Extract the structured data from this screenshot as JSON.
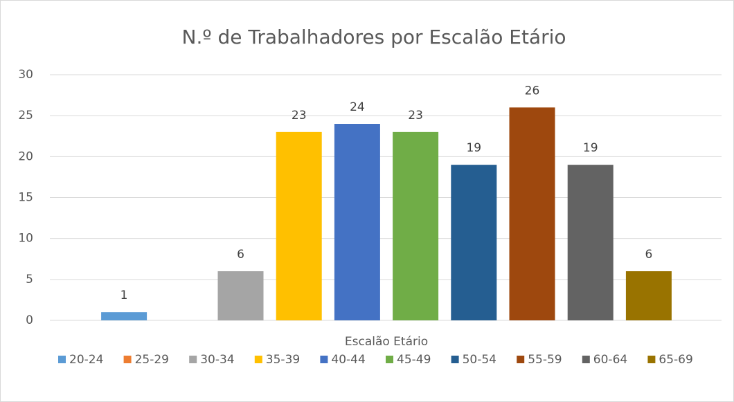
{
  "chart_data": {
    "type": "bar",
    "title": "N.º de Trabalhadores por Escalão Etário",
    "x_label": "Escalão Etário",
    "categories": [
      "20-24",
      "25-29",
      "30-34",
      "35-39",
      "40-44",
      "45-49",
      "50-54",
      "55-59",
      "60-64",
      "65-69"
    ],
    "values": [
      1,
      null,
      6,
      23,
      24,
      23,
      19,
      26,
      19,
      6
    ],
    "colors": [
      "#5b9bd5",
      "#ed7d31",
      "#a5a5a5",
      "#ffc000",
      "#4472c4",
      "#70ad47",
      "#255e91",
      "#9e480e",
      "#636363",
      "#997300"
    ],
    "ylim": [
      0,
      30
    ],
    "yticks": [
      0,
      5,
      10,
      15,
      20,
      25,
      30
    ],
    "grid": true,
    "legend": "bottom"
  }
}
